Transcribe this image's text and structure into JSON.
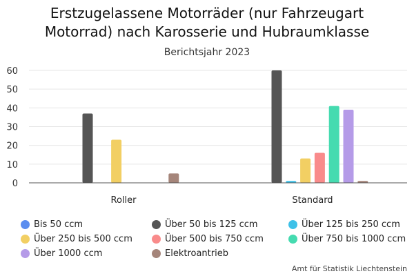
{
  "header": {
    "title_line1": "Erstzugelassene Motorräder (nur Fahrzeugart",
    "title_line2": "Motorrad) nach Karosserie und Hubraumklasse",
    "subtitle": "Berichtsjahr 2023"
  },
  "footer": {
    "source": "Amt für Statistik Liechtenstein"
  },
  "chart_data": {
    "type": "bar",
    "title": "Erstzugelassene Motorräder (nur Fahrzeugart Motorrad) nach Karosserie und Hubraumklasse",
    "subtitle": "Berichtsjahr 2023",
    "categories": [
      "Roller",
      "Standard"
    ],
    "ylim": [
      0,
      60
    ],
    "yticks": [
      0,
      10,
      20,
      30,
      40,
      50,
      60
    ],
    "grid": true,
    "legend_position": "bottom",
    "series": [
      {
        "name": "Bis 50 ccm",
        "color": "#5b8def",
        "values": [
          0,
          0
        ]
      },
      {
        "name": "Über 50 bis 125 ccm",
        "color": "#555555",
        "values": [
          37,
          60
        ]
      },
      {
        "name": "Über 125 bis 250 ccm",
        "color": "#3ec1e8",
        "values": [
          0,
          1
        ]
      },
      {
        "name": "Über 250 bis 500 ccm",
        "color": "#f2cf63",
        "values": [
          23,
          13
        ]
      },
      {
        "name": "Über 500 bis 750 ccm",
        "color": "#f98b8b",
        "values": [
          0,
          16
        ]
      },
      {
        "name": "Über 750 bis 1000 ccm",
        "color": "#45dbb0",
        "values": [
          0,
          41
        ]
      },
      {
        "name": "Über 1000 ccm",
        "color": "#b59be8",
        "values": [
          0,
          39
        ]
      },
      {
        "name": "Elektroantrieb",
        "color": "#a5857a",
        "values": [
          5,
          1
        ]
      }
    ]
  }
}
